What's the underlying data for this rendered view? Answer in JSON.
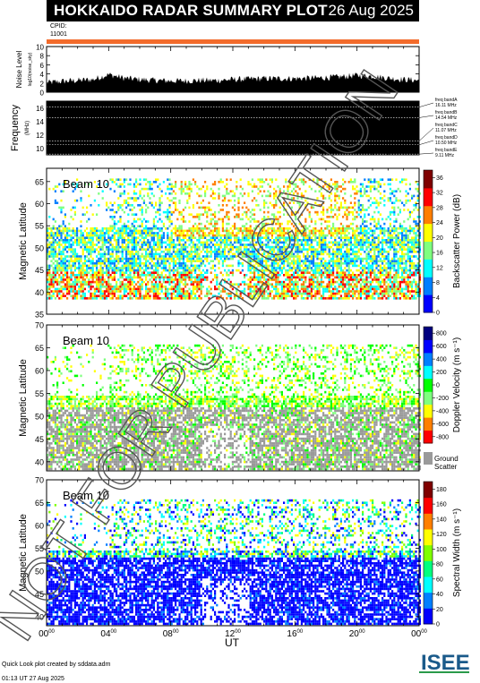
{
  "header": {
    "title": "HOKKAIDO RADAR SUMMARY PLOT",
    "date": "26 Aug 2025",
    "cpid_label": "CPID:",
    "cpid_value": "11001"
  },
  "footer": {
    "credit": "Quick Look plot created by sddata.adm",
    "printed": "01:13 UT 27 Aug 2025",
    "logo_text": "ISEE",
    "watermark": "NOT FOR PUBLICATION"
  },
  "colors": {
    "accent_bar": "#f36b2b",
    "ground_scatter": "#9a9a9a"
  },
  "chart_data": [
    {
      "type": "area",
      "name": "noise-level",
      "ylabel": "Noise Level",
      "ylabel_sub": "log10(noise_sky)",
      "ylim": [
        0,
        10
      ],
      "yticks": [
        "0",
        "2",
        "4",
        "6",
        "8",
        "10"
      ],
      "x_hours": [
        0,
        1,
        2,
        3,
        4,
        5,
        6,
        7,
        8,
        9,
        10,
        11,
        12,
        13,
        14,
        15,
        16,
        17,
        18,
        19,
        20,
        21,
        22,
        23,
        24
      ],
      "values": [
        1.8,
        2.1,
        2.3,
        2.5,
        3.6,
        2.8,
        2.5,
        2.3,
        2.2,
        2.2,
        2.3,
        2.3,
        2.5,
        2.6,
        2.7,
        2.7,
        2.7,
        2.8,
        2.9,
        3.1,
        3.4,
        3.2,
        2.8,
        2.5,
        2.3
      ]
    },
    {
      "type": "table",
      "name": "frequency",
      "ylabel": "Frequency",
      "ylabel_sub": "(MHz)",
      "ylim": [
        9,
        17
      ],
      "yticks": [
        "10",
        "12",
        "14",
        "16"
      ],
      "bands": [
        {
          "label": "freq bandA",
          "value": "16.11 MHz"
        },
        {
          "label": "freq bandB",
          "value": "14.54 MHz"
        },
        {
          "label": "freq bandC",
          "value": "11.07 MHz"
        },
        {
          "label": "freq bandD",
          "value": "10.50 MHz"
        },
        {
          "label": "freq bandE",
          "value": "9.11 MHz"
        }
      ]
    },
    {
      "type": "heatmap",
      "name": "backscatter-power",
      "beam_label": "Beam 10",
      "ylabel": "Magnetic Latitude",
      "yticks": [
        "35",
        "40",
        "45",
        "50",
        "55",
        "60",
        "65"
      ],
      "ylim": [
        35,
        68
      ],
      "colorbar_label": "Backscatter Power (dB)",
      "colorbar_ticks": [
        "0",
        "4",
        "8",
        "12",
        "16",
        "20",
        "24",
        "28",
        "32",
        "36"
      ],
      "colorbar_range": [
        0,
        38
      ]
    },
    {
      "type": "heatmap",
      "name": "doppler-velocity",
      "beam_label": "Beam 10",
      "ylabel": "Magnetic Latitude",
      "yticks": [
        "40",
        "45",
        "50",
        "55",
        "60",
        "65",
        "70"
      ],
      "ylim": [
        38,
        70
      ],
      "colorbar_label": "Doppler Velocity (m s⁻¹)",
      "colorbar_ticks": [
        "-800",
        "-600",
        "-400",
        "-200",
        "0",
        "200",
        "400",
        "600",
        "800"
      ],
      "colorbar_range": [
        -900,
        900
      ],
      "ground_label_1": "Ground",
      "ground_label_2": "Scatter"
    },
    {
      "type": "heatmap",
      "name": "spectral-width",
      "beam_label": "Beam 10",
      "ylabel": "Magnetic Latitude",
      "yticks": [
        "40",
        "45",
        "50",
        "55",
        "60",
        "65",
        "70"
      ],
      "ylim": [
        38,
        70
      ],
      "colorbar_label": "Spectral Width (m s⁻¹)",
      "colorbar_ticks": [
        "0",
        "20",
        "40",
        "60",
        "80",
        "100",
        "120",
        "140",
        "160",
        "180"
      ],
      "colorbar_range": [
        0,
        190
      ]
    },
    {
      "type": "table",
      "name": "time-axis",
      "xlabel": "UT",
      "xticks": [
        "00",
        "04",
        "08",
        "12",
        "16",
        "20",
        "00"
      ],
      "xtick_suffix": "00"
    }
  ]
}
